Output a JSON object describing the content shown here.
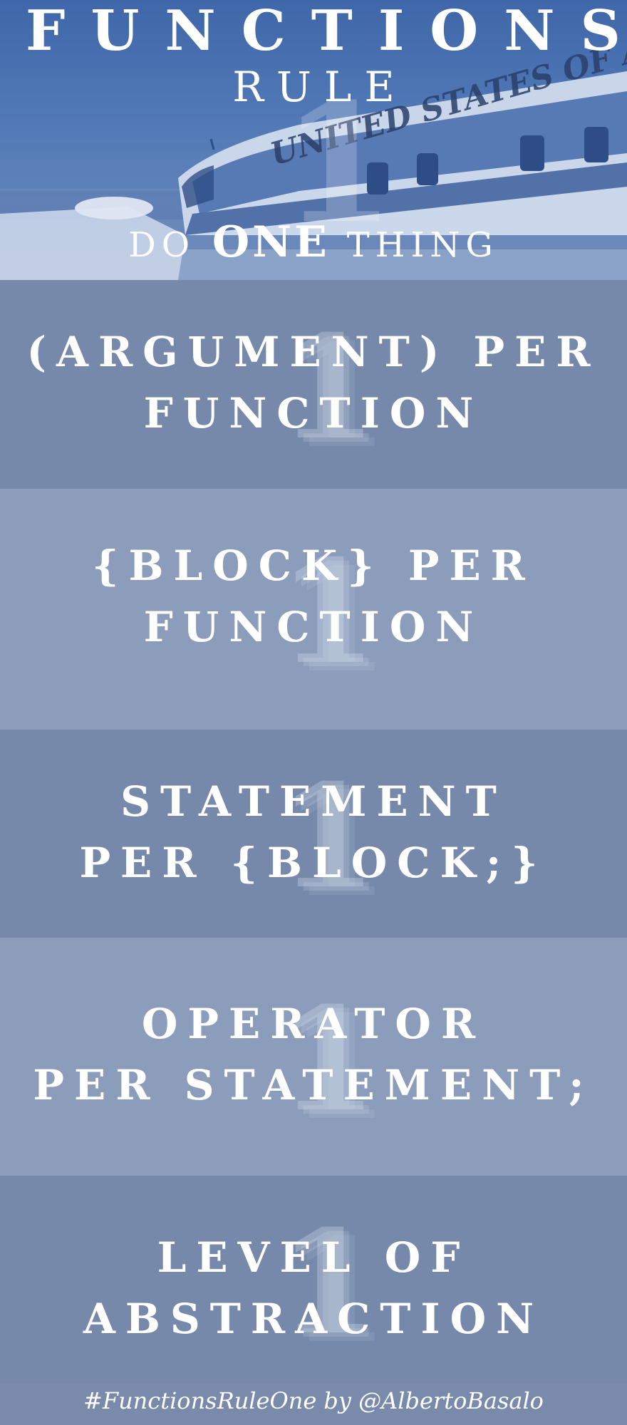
{
  "hero": {
    "title": "FUNCTIONS",
    "subtitle": "RULE",
    "numeral": "1",
    "tagline": {
      "pre": "DO",
      "emphasis": "ONE",
      "post": "THING"
    },
    "plane_text": "UNITED STATES OF AME"
  },
  "rules": [
    {
      "numeral": "1",
      "lines": [
        "(ARGUMENT) PER",
        "FUNCTION"
      ]
    },
    {
      "numeral": "1",
      "lines": [
        "{BLOCK} PER",
        "FUNCTION"
      ]
    },
    {
      "numeral": "1",
      "lines": [
        "STATEMENT",
        "PER {BLOCK;}"
      ]
    },
    {
      "numeral": "1",
      "lines": [
        "OPERATOR",
        "PER STATEMENT;"
      ]
    },
    {
      "numeral": "1",
      "lines": [
        "LEVEL OF",
        "ABSTRACTION"
      ]
    }
  ],
  "footer": {
    "text": "#FunctionsRuleOne by @AlbertoBasalo"
  },
  "colors": {
    "band_dark": "#7789ab",
    "band_light": "#8b9dbb",
    "hero_blue": "#4e76b4",
    "text": "#ffffff"
  }
}
